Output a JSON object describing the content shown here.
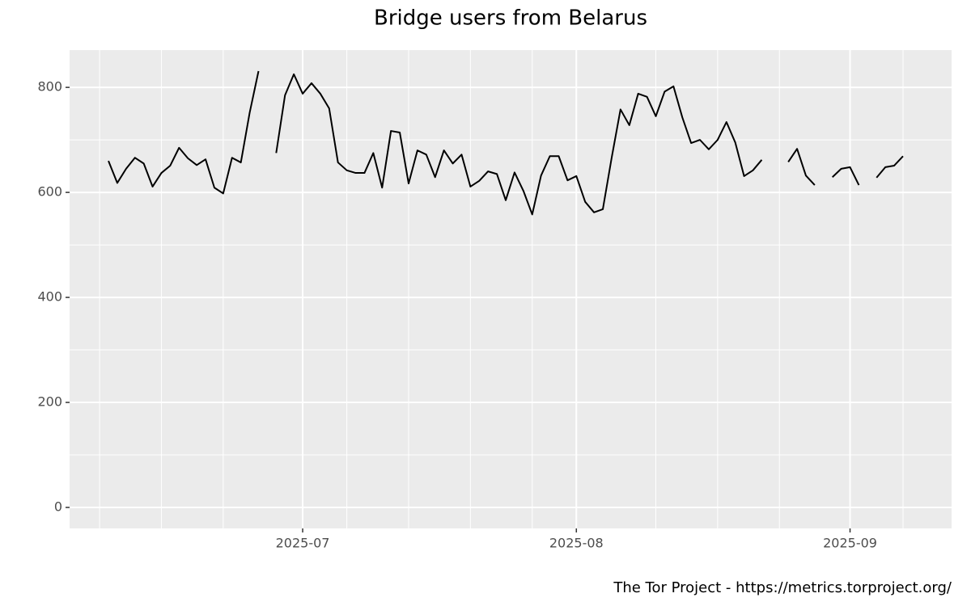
{
  "chart_data": {
    "type": "line",
    "title": "Bridge users from Belarus",
    "caption": "The Tor Project - https://metrics.torproject.org/",
    "x": [
      0,
      1,
      2,
      3,
      4,
      5,
      6,
      7,
      8,
      9,
      10,
      11,
      12,
      13,
      14,
      15,
      16,
      17,
      18,
      19,
      20,
      21,
      22,
      23,
      24,
      25,
      26,
      27,
      28,
      29,
      30,
      31,
      32,
      33,
      34,
      35,
      36,
      37,
      38,
      39,
      40,
      41,
      42,
      43,
      44,
      45,
      46,
      47,
      48,
      49,
      50,
      51,
      52,
      53,
      54,
      55,
      56,
      57,
      58,
      59,
      60,
      61,
      62,
      63,
      64,
      65,
      66,
      67,
      68,
      69,
      70,
      71,
      72,
      73,
      74,
      75,
      76,
      77,
      78,
      79,
      80,
      81,
      82,
      83,
      84,
      85,
      86,
      87,
      88,
      89,
      90
    ],
    "values": [
      660,
      618,
      645,
      666,
      655,
      611,
      637,
      651,
      685,
      665,
      652,
      663,
      609,
      598,
      666,
      657,
      752,
      831,
      null,
      675,
      785,
      825,
      788,
      808,
      788,
      760,
      657,
      642,
      637,
      637,
      675,
      609,
      717,
      714,
      617,
      680,
      672,
      629,
      680,
      655,
      672,
      611,
      622,
      640,
      635,
      585,
      638,
      603,
      558,
      632,
      669,
      669,
      623,
      631,
      582,
      562,
      568,
      666,
      758,
      728,
      788,
      782,
      745,
      792,
      802,
      743,
      694,
      700,
      682,
      700,
      734,
      695,
      631,
      642,
      662,
      null,
      null,
      658,
      683,
      632,
      614,
      null,
      629,
      645,
      648,
      614,
      null,
      628,
      648,
      651,
      669
    ],
    "color": "#000000",
    "xlim": [
      -4.4,
      95.5
    ],
    "xticks": [
      {
        "value": 22,
        "label": "2025-07"
      },
      {
        "value": 53,
        "label": "2025-08"
      },
      {
        "value": 84,
        "label": "2025-09"
      }
    ],
    "xminor": [
      -1,
      6,
      13,
      27,
      34,
      41,
      48,
      62,
      69,
      76,
      90
    ],
    "ylim": [
      -40,
      871
    ],
    "yticks": [
      0,
      200,
      400,
      600,
      800
    ],
    "yminor": [
      100,
      300,
      500,
      700
    ],
    "grid": true
  }
}
